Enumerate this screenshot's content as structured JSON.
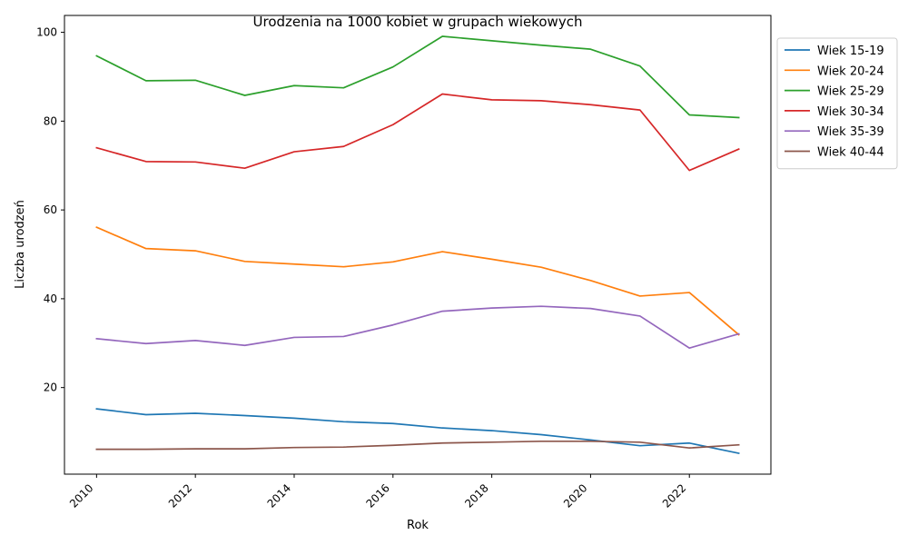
{
  "chart_data": {
    "type": "line",
    "title": "Urodzenia na 1000 kobiet w grupach wiekowych",
    "xlabel": "Rok",
    "ylabel": "Liczba urodzeń",
    "x": [
      2010,
      2011,
      2012,
      2013,
      2014,
      2015,
      2016,
      2017,
      2018,
      2019,
      2020,
      2021,
      2022,
      2023
    ],
    "xticks": [
      2010,
      2012,
      2014,
      2016,
      2018,
      2020,
      2022
    ],
    "yticks": [
      20,
      40,
      60,
      80,
      100
    ],
    "xlim": [
      2009.35,
      2023.65
    ],
    "ylim": [
      0.5,
      103.8
    ],
    "grid": false,
    "legend_position": "outside-top-right",
    "series": [
      {
        "name": "Wiek 15-19",
        "color": "#1f77b4",
        "values": [
          15.2,
          13.9,
          14.2,
          13.7,
          13.1,
          12.3,
          11.9,
          10.9,
          10.3,
          9.4,
          8.2,
          6.9,
          7.5,
          5.2
        ]
      },
      {
        "name": "Wiek 20-24",
        "color": "#ff7f0e",
        "values": [
          56.1,
          51.3,
          50.8,
          48.4,
          47.8,
          47.2,
          48.3,
          50.6,
          48.9,
          47.1,
          44.1,
          40.6,
          41.4,
          31.9
        ]
      },
      {
        "name": "Wiek 25-29",
        "color": "#2ca02c",
        "values": [
          94.7,
          89.1,
          89.2,
          85.8,
          88.0,
          87.5,
          92.2,
          99.1,
          98.1,
          97.1,
          96.2,
          92.4,
          81.4,
          80.8
        ]
      },
      {
        "name": "Wiek 30-34",
        "color": "#d62728",
        "values": [
          74.0,
          70.9,
          70.8,
          69.4,
          73.1,
          74.3,
          79.2,
          86.1,
          84.8,
          84.6,
          83.7,
          82.5,
          68.9,
          73.7
        ]
      },
      {
        "name": "Wiek 35-39",
        "color": "#9467bd",
        "values": [
          31.0,
          29.9,
          30.6,
          29.5,
          31.3,
          31.5,
          34.1,
          37.2,
          37.9,
          38.3,
          37.8,
          36.1,
          28.9,
          32.1
        ]
      },
      {
        "name": "Wiek 40-44",
        "color": "#8c564b",
        "values": [
          6.1,
          6.1,
          6.2,
          6.2,
          6.5,
          6.6,
          7.0,
          7.5,
          7.7,
          7.9,
          7.9,
          7.7,
          6.4,
          7.1
        ]
      }
    ]
  }
}
